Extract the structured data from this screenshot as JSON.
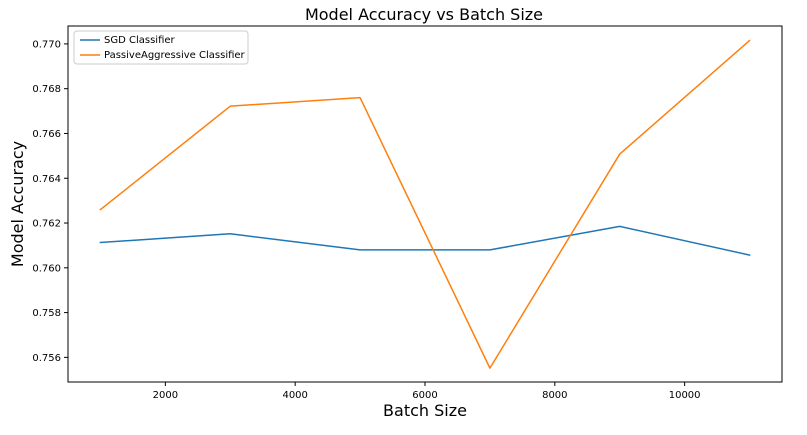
{
  "chart_data": {
    "type": "line",
    "title": "Model Accuracy vs Batch Size",
    "xlabel": "Batch Size",
    "ylabel": "Model Accuracy",
    "x": [
      1000,
      3000,
      5000,
      7000,
      9000,
      11000
    ],
    "series": [
      {
        "name": "SGD Classifier",
        "color": "#1f77b4",
        "values": [
          0.76113,
          0.76152,
          0.7608,
          0.7608,
          0.76185,
          0.76057
        ]
      },
      {
        "name": "PassiveAggressive Classifier",
        "color": "#ff7f0e",
        "values": [
          0.7626,
          0.76722,
          0.7676,
          0.75552,
          0.76508,
          0.77015
        ]
      }
    ],
    "xlim": [
      500,
      11500
    ],
    "ylim": [
      0.7549,
      0.7708
    ],
    "xticks": [
      2000,
      4000,
      6000,
      8000,
      10000
    ],
    "xtick_labels": [
      "2000",
      "4000",
      "6000",
      "8000",
      "10000"
    ],
    "yticks": [
      0.756,
      0.758,
      0.76,
      0.762,
      0.764,
      0.766,
      0.768,
      0.77
    ],
    "ytick_labels": [
      "0.756",
      "0.758",
      "0.760",
      "0.762",
      "0.764",
      "0.766",
      "0.768",
      "0.770"
    ],
    "grid": false,
    "legend_position": "top-left"
  }
}
